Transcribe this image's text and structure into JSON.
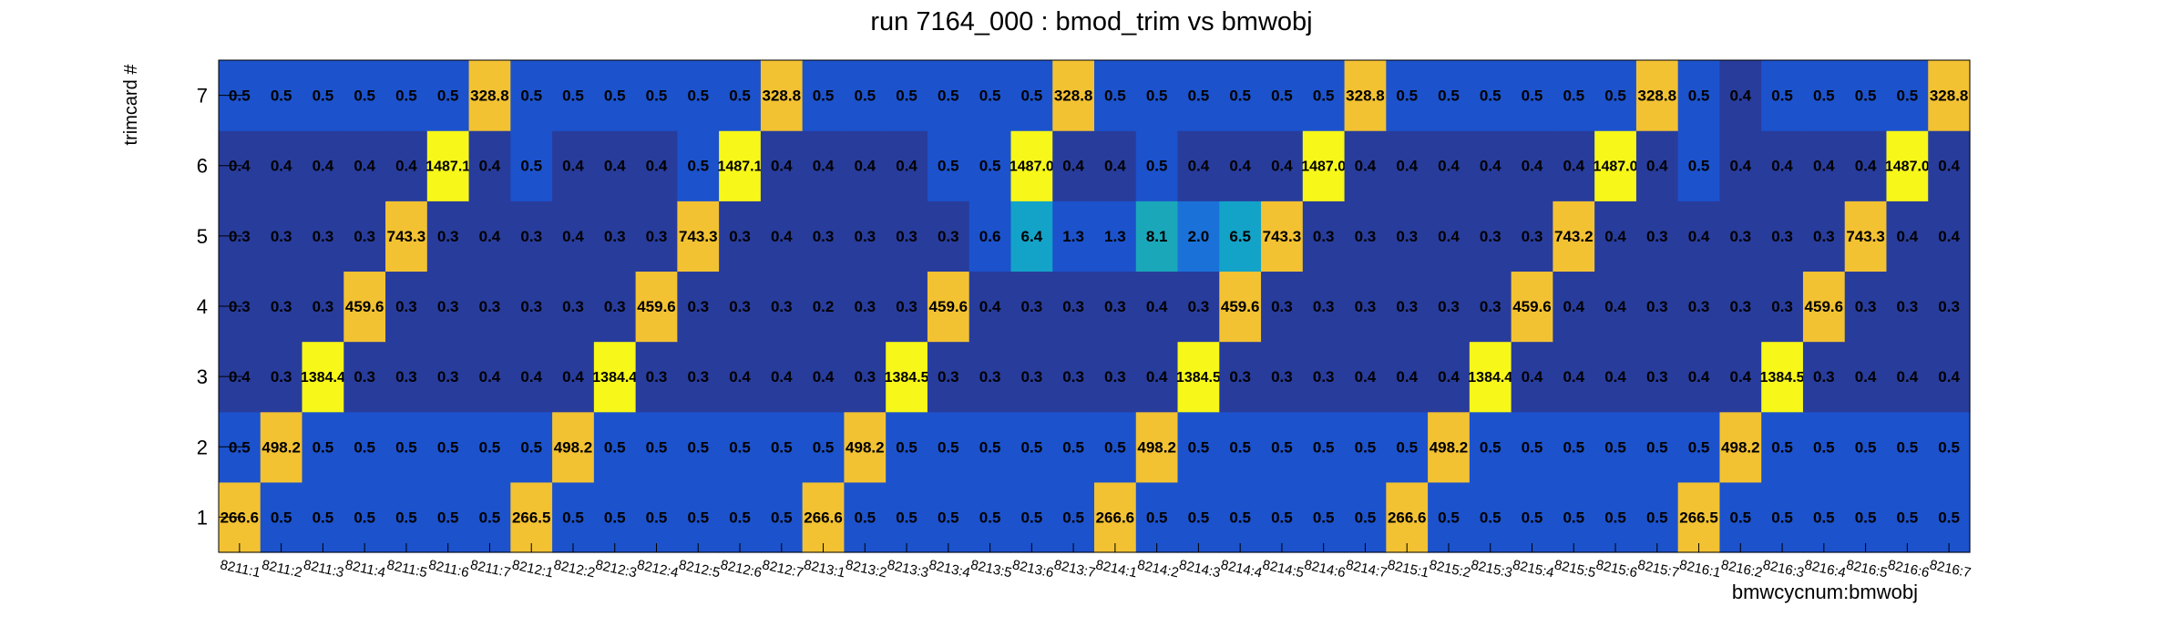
{
  "chart_data": {
    "type": "heatmap",
    "title": "run 7164_000 : bmod_trim vs bmwobj",
    "xlabel": "bmwcycnum:bmwobj",
    "ylabel": "trimcard #",
    "y_categories": [
      "1",
      "2",
      "3",
      "4",
      "5",
      "6",
      "7"
    ],
    "x_categories": [
      "8211:1",
      "8211:2",
      "8211:3",
      "8211:4",
      "8211:5",
      "8211:6",
      "8211:7",
      "8212:1",
      "8212:2",
      "8212:3",
      "8212:4",
      "8212:5",
      "8212:6",
      "8212:7",
      "8213:1",
      "8213:2",
      "8213:3",
      "8213:4",
      "8213:5",
      "8213:6",
      "8213:7",
      "8214:1",
      "8214:2",
      "8214:3",
      "8214:4",
      "8214:5",
      "8214:6",
      "8214:7",
      "8215:1",
      "8215:2",
      "8215:3",
      "8215:4",
      "8215:5",
      "8215:6",
      "8215:7",
      "8216:1",
      "8216:2",
      "8216:3",
      "8216:4",
      "8216:5",
      "8216:6",
      "8216:7"
    ],
    "rows": [
      {
        "label": "1",
        "values": [
          "266.6",
          "0.5",
          "0.5",
          "0.5",
          "0.5",
          "0.5",
          "0.5",
          "266.5",
          "0.5",
          "0.5",
          "0.5",
          "0.5",
          "0.5",
          "0.5",
          "266.6",
          "0.5",
          "0.5",
          "0.5",
          "0.5",
          "0.5",
          "0.5",
          "266.6",
          "0.5",
          "0.5",
          "0.5",
          "0.5",
          "0.5",
          "0.5",
          "266.6",
          "0.5",
          "0.5",
          "0.5",
          "0.5",
          "0.5",
          "0.5",
          "266.5",
          "0.5",
          "0.5",
          "0.5",
          "0.5",
          "0.5",
          "0.5"
        ]
      },
      {
        "label": "2",
        "values": [
          "0.5",
          "498.2",
          "0.5",
          "0.5",
          "0.5",
          "0.5",
          "0.5",
          "0.5",
          "498.2",
          "0.5",
          "0.5",
          "0.5",
          "0.5",
          "0.5",
          "0.5",
          "498.2",
          "0.5",
          "0.5",
          "0.5",
          "0.5",
          "0.5",
          "0.5",
          "498.2",
          "0.5",
          "0.5",
          "0.5",
          "0.5",
          "0.5",
          "0.5",
          "498.2",
          "0.5",
          "0.5",
          "0.5",
          "0.5",
          "0.5",
          "0.5",
          "498.2",
          "0.5",
          "0.5",
          "0.5",
          "0.5",
          "0.5"
        ]
      },
      {
        "label": "3",
        "values": [
          "0.4",
          "0.3",
          "1384.4",
          "0.3",
          "0.3",
          "0.3",
          "0.4",
          "0.4",
          "0.4",
          "1384.4",
          "0.3",
          "0.3",
          "0.4",
          "0.4",
          "0.4",
          "0.3",
          "1384.5",
          "0.3",
          "0.3",
          "0.3",
          "0.3",
          "0.3",
          "0.4",
          "1384.5",
          "0.3",
          "0.3",
          "0.3",
          "0.4",
          "0.4",
          "0.4",
          "1384.4",
          "0.4",
          "0.4",
          "0.4",
          "0.3",
          "0.4",
          "0.4",
          "1384.5",
          "0.3",
          "0.4",
          "0.4",
          "0.4"
        ]
      },
      {
        "label": "4",
        "values": [
          "0.3",
          "0.3",
          "0.3",
          "459.6",
          "0.3",
          "0.3",
          "0.3",
          "0.3",
          "0.3",
          "0.3",
          "459.6",
          "0.3",
          "0.3",
          "0.3",
          "0.2",
          "0.3",
          "0.3",
          "459.6",
          "0.4",
          "0.3",
          "0.3",
          "0.3",
          "0.4",
          "0.3",
          "459.6",
          "0.3",
          "0.3",
          "0.3",
          "0.3",
          "0.3",
          "0.3",
          "459.6",
          "0.4",
          "0.4",
          "0.3",
          "0.3",
          "0.3",
          "0.3",
          "459.6",
          "0.3",
          "0.3",
          "0.3"
        ]
      },
      {
        "label": "5",
        "values": [
          "0.3",
          "0.3",
          "0.3",
          "0.3",
          "743.3",
          "0.3",
          "0.4",
          "0.3",
          "0.4",
          "0.3",
          "0.3",
          "743.3",
          "0.3",
          "0.4",
          "0.3",
          "0.3",
          "0.3",
          "0.3",
          "0.6",
          "6.4",
          "1.3",
          "1.3",
          "8.1",
          "2.0",
          "6.5",
          "743.3",
          "0.3",
          "0.3",
          "0.3",
          "0.4",
          "0.3",
          "0.3",
          "743.2",
          "0.4",
          "0.3",
          "0.4",
          "0.3",
          "0.3",
          "0.3",
          "743.3",
          "0.4",
          "0.4"
        ]
      },
      {
        "label": "6",
        "values": [
          "0.4",
          "0.4",
          "0.4",
          "0.4",
          "0.4",
          "1487.1",
          "0.4",
          "0.5",
          "0.4",
          "0.4",
          "0.4",
          "0.5",
          "1487.1",
          "0.4",
          "0.4",
          "0.4",
          "0.4",
          "0.5",
          "0.5",
          "1487.0",
          "0.4",
          "0.4",
          "0.5",
          "0.4",
          "0.4",
          "0.4",
          "1487.0",
          "0.4",
          "0.4",
          "0.4",
          "0.4",
          "0.4",
          "0.4",
          "1487.0",
          "0.4",
          "0.5",
          "0.4",
          "0.4",
          "0.4",
          "0.4",
          "1487.0",
          "0.4"
        ]
      },
      {
        "label": "7",
        "values": [
          "0.5",
          "0.5",
          "0.5",
          "0.5",
          "0.5",
          "0.5",
          "328.8",
          "0.5",
          "0.5",
          "0.5",
          "0.5",
          "0.5",
          "0.5",
          "328.8",
          "0.5",
          "0.5",
          "0.5",
          "0.5",
          "0.5",
          "0.5",
          "328.8",
          "0.5",
          "0.5",
          "0.5",
          "0.5",
          "0.5",
          "0.5",
          "328.8",
          "0.5",
          "0.5",
          "0.5",
          "0.5",
          "0.5",
          "0.5",
          "328.8",
          "0.5",
          "0.4",
          "0.5",
          "0.5",
          "0.5",
          "0.5",
          "328.8"
        ]
      }
    ],
    "colors": {
      "low": "#283c9c",
      "mid": "#1c52cc",
      "cyan_mid": "#1a72d8",
      "cyan": "#13a3c9",
      "teal": "#1aa7ba",
      "orange": "#f3c233",
      "yellow": "#f7f71a",
      "text": "#000000"
    },
    "grid": false,
    "legend": "none"
  }
}
